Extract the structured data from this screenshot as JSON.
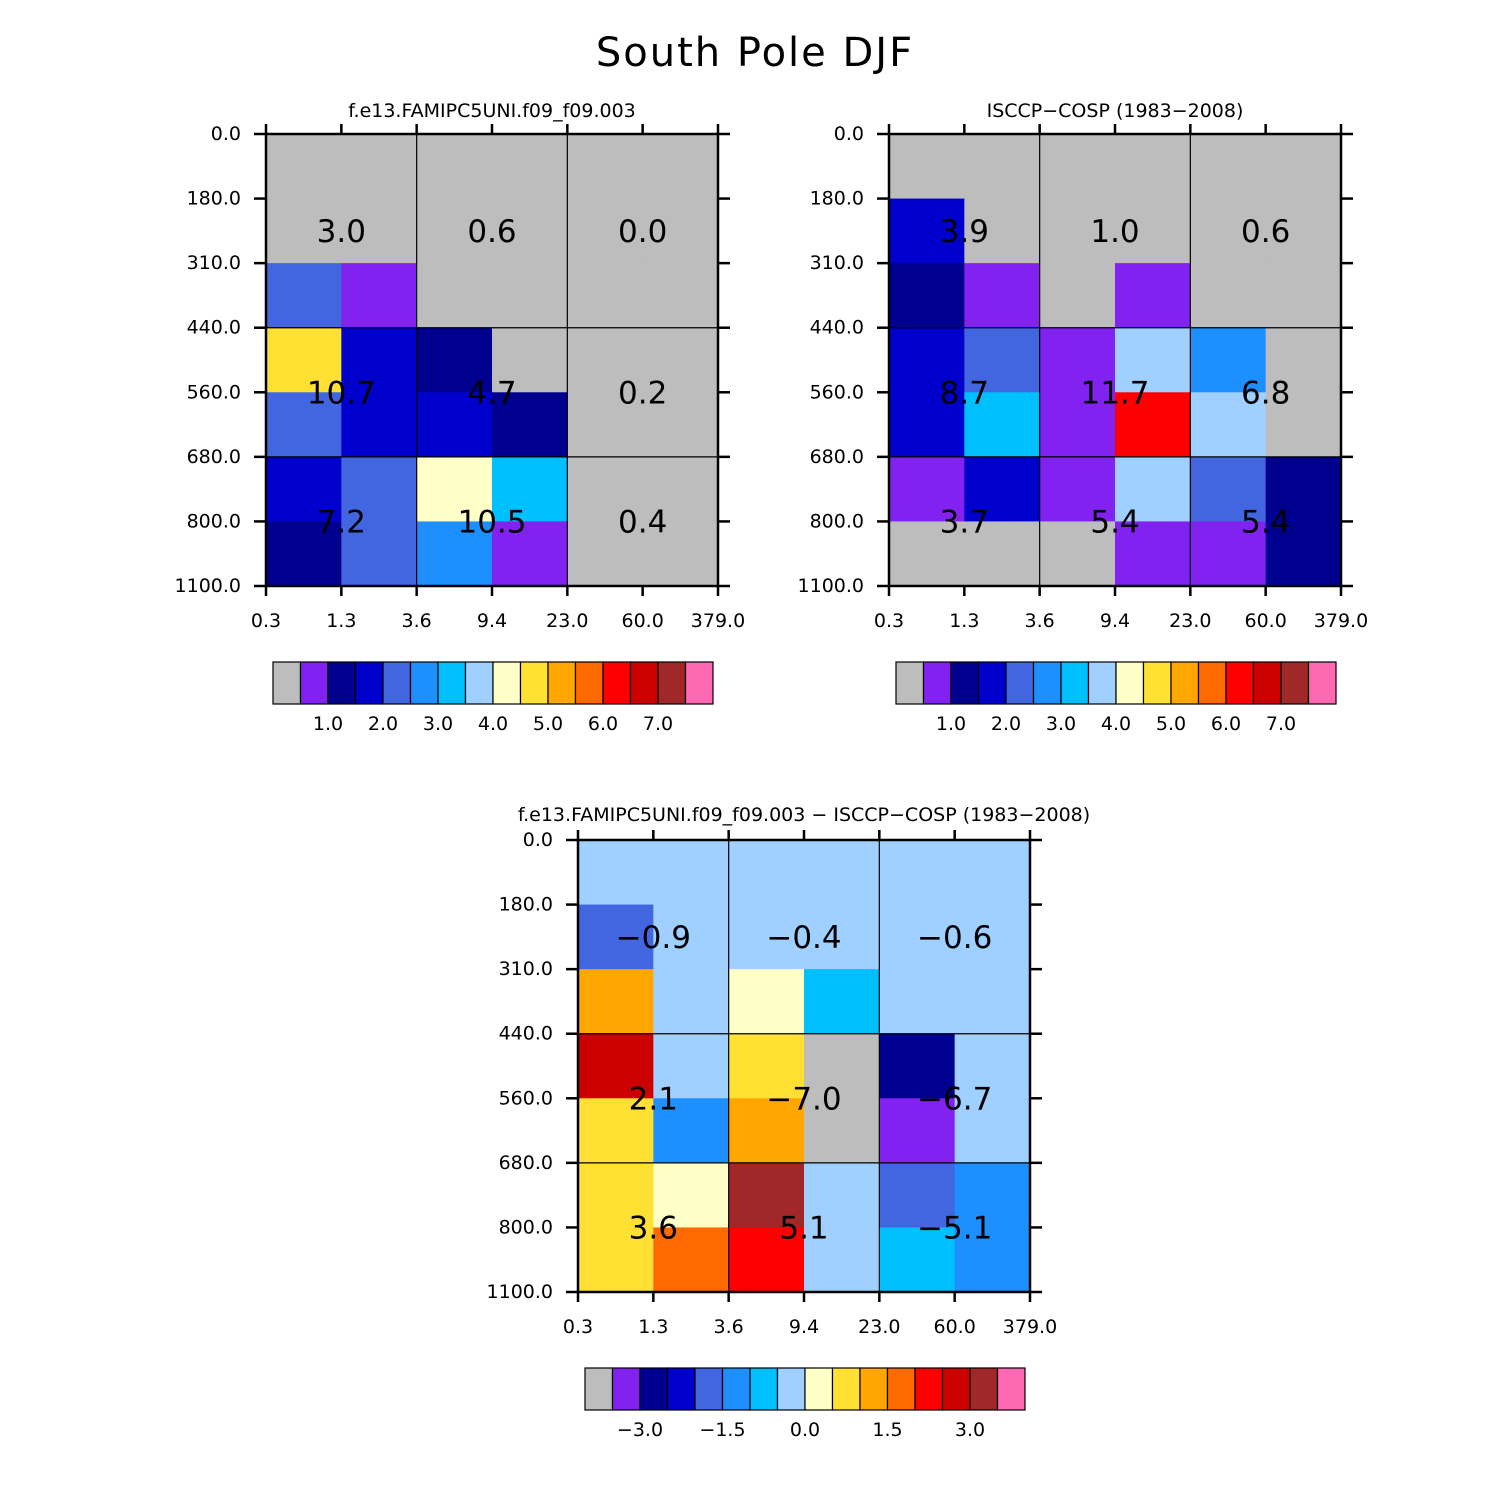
{
  "figure_title": "South Pole DJF",
  "axes": {
    "x_ticks": [
      "0.3",
      "1.3",
      "3.6",
      "9.4",
      "23.0",
      "60.0",
      "379.0"
    ],
    "y_ticks": [
      "0.0",
      "180.0",
      "310.0",
      "440.0",
      "560.0",
      "680.0",
      "800.0",
      "1100.0"
    ]
  },
  "colors": {
    "gray": "#BDBDBD",
    "violet": "#8122F0",
    "navy": "#00008F",
    "blue": "#0000CD",
    "royal": "#4166DF",
    "dodger": "#1E8FFF",
    "sky": "#00BFFF",
    "light_blue": "#A0D0FF",
    "cream": "#FFFFC8",
    "yellow": "#FFE033",
    "orange": "#FFA700",
    "dark_orange": "#FF6A00",
    "red": "#FF0000",
    "crimson": "#CD0000",
    "brown": "#A02828",
    "pink": "#FF69B4"
  },
  "colorbars": {
    "abs": {
      "colors": [
        "gray",
        "violet",
        "navy",
        "blue",
        "royal",
        "dodger",
        "sky",
        "light_blue",
        "cream",
        "yellow",
        "orange",
        "dark_orange",
        "red",
        "crimson",
        "brown",
        "pink"
      ],
      "labels": [
        {
          "after": 2,
          "text": "1.0"
        },
        {
          "after": 4,
          "text": "2.0"
        },
        {
          "after": 6,
          "text": "3.0"
        },
        {
          "after": 8,
          "text": "4.0"
        },
        {
          "after": 10,
          "text": "5.0"
        },
        {
          "after": 12,
          "text": "6.0"
        },
        {
          "after": 14,
          "text": "7.0"
        }
      ]
    },
    "diff": {
      "colors": [
        "gray",
        "violet",
        "navy",
        "blue",
        "royal",
        "dodger",
        "sky",
        "light_blue",
        "cream",
        "yellow",
        "orange",
        "dark_orange",
        "red",
        "crimson",
        "brown",
        "pink"
      ],
      "labels": [
        {
          "after": 2,
          "text": "−3.0"
        },
        {
          "after": 5,
          "text": "−1.5"
        },
        {
          "after": 8,
          "text": "0.0"
        },
        {
          "after": 11,
          "text": "1.5"
        },
        {
          "after": 14,
          "text": "3.0"
        }
      ]
    }
  },
  "chart_data": [
    {
      "type": "heatmap",
      "title": "f.e13.FAMIPC5UNI.f09_f09.003",
      "cells": [
        [
          "gray",
          "gray",
          "gray",
          "gray",
          "gray",
          "gray"
        ],
        [
          "gray",
          "gray",
          "gray",
          "gray",
          "gray",
          "gray"
        ],
        [
          "royal",
          "violet",
          "gray",
          "gray",
          "gray",
          "gray"
        ],
        [
          "yellow",
          "blue",
          "navy",
          "gray",
          "gray",
          "gray"
        ],
        [
          "royal",
          "blue",
          "blue",
          "navy",
          "gray",
          "gray"
        ],
        [
          "blue",
          "royal",
          "cream",
          "sky",
          "gray",
          "gray"
        ],
        [
          "navy",
          "royal",
          "dodger",
          "violet",
          "gray",
          "gray"
        ]
      ],
      "group_values": [
        [
          "3.0",
          "0.6",
          "0.0"
        ],
        [
          "10.7",
          "4.7",
          "0.2"
        ],
        [
          "7.2",
          "10.5",
          "0.4"
        ]
      ],
      "colorbar": "abs"
    },
    {
      "type": "heatmap",
      "title": "ISCCP−COSP (1983−2008)",
      "cells": [
        [
          "gray",
          "gray",
          "gray",
          "gray",
          "gray",
          "gray"
        ],
        [
          "blue",
          "gray",
          "gray",
          "gray",
          "gray",
          "gray"
        ],
        [
          "navy",
          "violet",
          "gray",
          "violet",
          "gray",
          "gray"
        ],
        [
          "blue",
          "royal",
          "violet",
          "light_blue",
          "dodger",
          "gray"
        ],
        [
          "blue",
          "sky",
          "violet",
          "red",
          "light_blue",
          "gray"
        ],
        [
          "violet",
          "blue",
          "violet",
          "light_blue",
          "royal",
          "navy"
        ],
        [
          "gray",
          "gray",
          "gray",
          "violet",
          "violet",
          "navy"
        ]
      ],
      "group_values": [
        [
          "3.9",
          "1.0",
          "0.6"
        ],
        [
          "8.7",
          "11.7",
          "6.8"
        ],
        [
          "3.7",
          "5.4",
          "5.4"
        ]
      ],
      "colorbar": "abs"
    },
    {
      "type": "heatmap",
      "title": "f.e13.FAMIPC5UNI.f09_f09.003 − ISCCP−COSP (1983−2008)",
      "cells": [
        [
          "light_blue",
          "light_blue",
          "light_blue",
          "light_blue",
          "light_blue",
          "light_blue"
        ],
        [
          "royal",
          "light_blue",
          "light_blue",
          "light_blue",
          "light_blue",
          "light_blue"
        ],
        [
          "orange",
          "light_blue",
          "cream",
          "sky",
          "light_blue",
          "light_blue"
        ],
        [
          "crimson",
          "light_blue",
          "yellow",
          "gray",
          "navy",
          "light_blue"
        ],
        [
          "yellow",
          "dodger",
          "orange",
          "gray",
          "violet",
          "light_blue"
        ],
        [
          "yellow",
          "cream",
          "brown",
          "light_blue",
          "royal",
          "dodger"
        ],
        [
          "yellow",
          "dark_orange",
          "red",
          "light_blue",
          "sky",
          "dodger"
        ]
      ],
      "group_values": [
        [
          "−0.9",
          "−0.4",
          "−0.6"
        ],
        [
          "2.1",
          "−7.0",
          "−6.7"
        ],
        [
          "3.6",
          "5.1",
          "−5.1"
        ]
      ],
      "colorbar": "diff"
    }
  ]
}
